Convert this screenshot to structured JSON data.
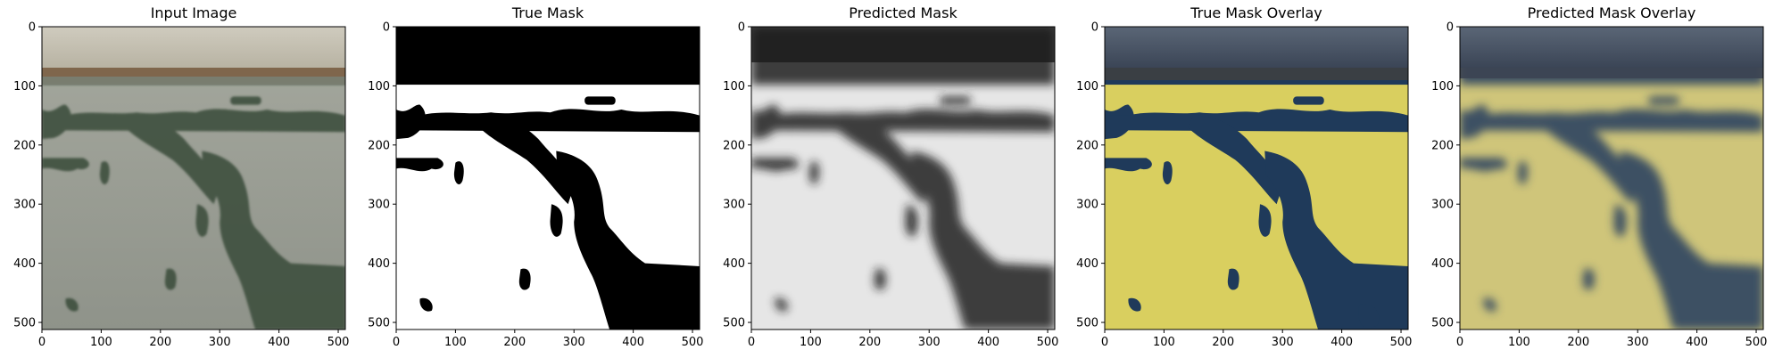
{
  "panels": [
    {
      "id": "input",
      "title": "Input Image",
      "kind": "photo"
    },
    {
      "id": "true-mask",
      "title": "True Mask",
      "kind": "mask"
    },
    {
      "id": "pred-mask",
      "title": "Predicted Mask",
      "kind": "pred"
    },
    {
      "id": "true-overlay",
      "title": "True Mask Overlay",
      "kind": "overlay-true"
    },
    {
      "id": "pred-overlay",
      "title": "Predicted Mask Overlay",
      "kind": "overlay-pred"
    }
  ],
  "axes": {
    "x_ticks": [
      0,
      100,
      200,
      300,
      400,
      500
    ],
    "y_ticks": [
      0,
      100,
      200,
      300,
      400,
      500
    ],
    "x_range": [
      0,
      512
    ],
    "y_range": [
      0,
      512
    ]
  },
  "colors": {
    "water_overlay": "#d9cf5f",
    "land_overlay": "#1f3a5a",
    "sky": "#bdb9ab",
    "horizon": "#8a6a4f",
    "water_photo": "#9a9c92",
    "trees": "#3e4f3e"
  }
}
